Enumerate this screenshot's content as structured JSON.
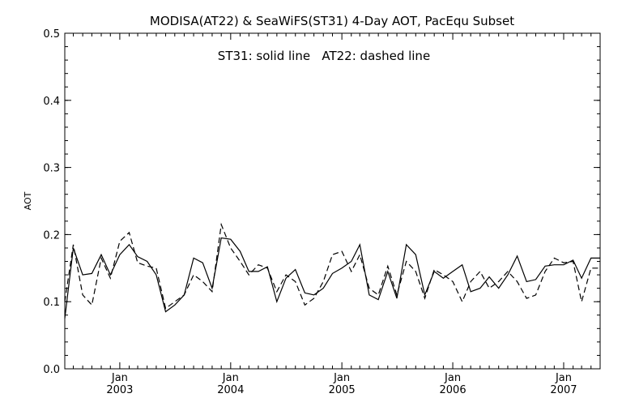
{
  "chart_data": {
    "type": "line",
    "title": "MODISA(AT22) & SeaWiFS(ST31) 4-Day AOT, PacEqu Subset",
    "annotation": "ST31: solid line   AT22: dashed line",
    "xlabel": "",
    "ylabel": "AOT",
    "xlim": [
      "2002-07-04",
      "2007-05-01"
    ],
    "ylim": [
      0.0,
      0.5
    ],
    "yticks": [
      "0.0",
      "0.1",
      "0.2",
      "0.3",
      "0.4",
      "0.5"
    ],
    "xticks": [
      {
        "month": "Jan",
        "year": "2003",
        "date": "2003-01-01"
      },
      {
        "month": "Jan",
        "year": "2004",
        "date": "2004-01-01"
      },
      {
        "month": "Jan",
        "year": "2005",
        "date": "2005-01-01"
      },
      {
        "month": "Jan",
        "year": "2006",
        "date": "2006-01-01"
      },
      {
        "month": "Jan",
        "year": "2007",
        "date": "2007-01-01"
      }
    ],
    "grid": false,
    "x": [
      "2002-07-04",
      "2002-08-01",
      "2002-09-01",
      "2002-10-01",
      "2002-11-01",
      "2002-12-01",
      "2003-01-01",
      "2003-02-01",
      "2003-03-01",
      "2003-04-01",
      "2003-05-01",
      "2003-06-01",
      "2003-07-01",
      "2003-08-01",
      "2003-09-01",
      "2003-10-01",
      "2003-11-01",
      "2003-12-01",
      "2004-01-01",
      "2004-02-01",
      "2004-03-01",
      "2004-04-01",
      "2004-05-01",
      "2004-06-01",
      "2004-07-01",
      "2004-08-01",
      "2004-09-01",
      "2004-10-01",
      "2004-11-01",
      "2004-12-01",
      "2005-01-01",
      "2005-02-01",
      "2005-03-01",
      "2005-04-01",
      "2005-05-01",
      "2005-06-01",
      "2005-07-01",
      "2005-08-01",
      "2005-09-01",
      "2005-10-01",
      "2005-11-01",
      "2005-12-01",
      "2006-01-01",
      "2006-02-01",
      "2006-03-01",
      "2006-04-01",
      "2006-05-01",
      "2006-06-01",
      "2006-07-01",
      "2006-08-01",
      "2006-09-01",
      "2006-10-01",
      "2006-11-01",
      "2006-12-01",
      "2007-01-01",
      "2007-02-01",
      "2007-03-01",
      "2007-04-01",
      "2007-05-01"
    ],
    "series": [
      {
        "label": "ST31",
        "style": "solid",
        "color": "#000000",
        "values": [
          0.075,
          0.18,
          0.14,
          0.142,
          0.17,
          0.14,
          0.17,
          0.185,
          0.167,
          0.16,
          0.14,
          0.085,
          0.095,
          0.11,
          0.165,
          0.158,
          0.12,
          0.195,
          0.193,
          0.175,
          0.145,
          0.145,
          0.152,
          0.1,
          0.135,
          0.148,
          0.113,
          0.11,
          0.12,
          0.142,
          0.15,
          0.16,
          0.185,
          0.11,
          0.103,
          0.145,
          0.105,
          0.185,
          0.17,
          0.11,
          0.145,
          0.135,
          0.145,
          0.155,
          0.115,
          0.12,
          0.137,
          0.12,
          0.14,
          0.168,
          0.13,
          0.133,
          0.153,
          0.155,
          0.155,
          0.162,
          0.135,
          0.165,
          0.165
        ]
      },
      {
        "label": "AT22",
        "style": "dashed",
        "color": "#000000",
        "values": [
          0.1,
          0.185,
          0.11,
          0.095,
          0.165,
          0.135,
          0.19,
          0.203,
          0.158,
          0.153,
          0.15,
          0.09,
          0.1,
          0.11,
          0.14,
          0.13,
          0.115,
          0.215,
          0.18,
          0.16,
          0.14,
          0.155,
          0.15,
          0.115,
          0.14,
          0.13,
          0.095,
          0.105,
          0.13,
          0.17,
          0.175,
          0.145,
          0.17,
          0.12,
          0.11,
          0.153,
          0.11,
          0.16,
          0.145,
          0.105,
          0.148,
          0.14,
          0.13,
          0.1,
          0.13,
          0.145,
          0.12,
          0.13,
          0.145,
          0.13,
          0.105,
          0.11,
          0.145,
          0.165,
          0.158,
          0.16,
          0.1,
          0.15,
          0.15
        ]
      }
    ]
  }
}
